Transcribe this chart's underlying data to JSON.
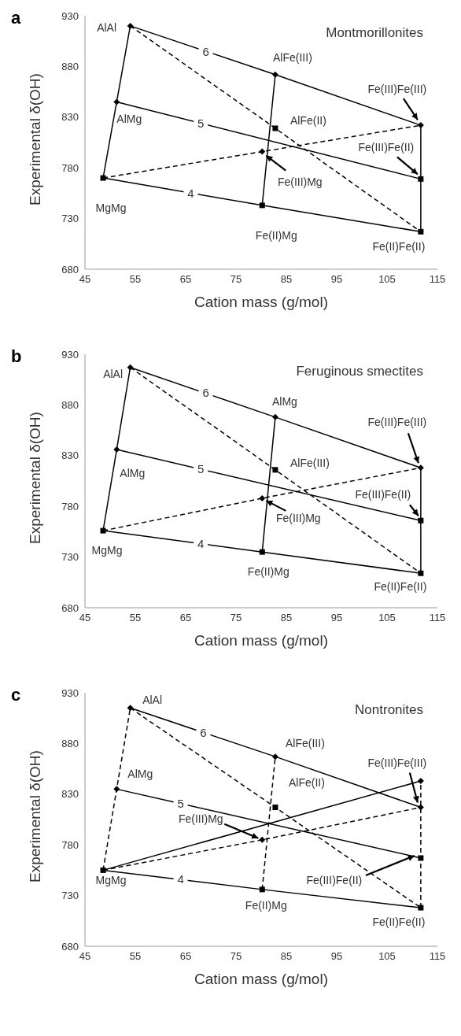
{
  "chart_data": [
    {
      "type": "line",
      "title": "a",
      "xlabel": "Cation mass (g/mol)",
      "ylabel": "Experimental δ(OH)",
      "xlim": [
        45,
        115
      ],
      "xticks": [
        45,
        55,
        65,
        75,
        85,
        95,
        105,
        115
      ],
      "ylim": [
        680,
        930
      ],
      "yticks": [
        680,
        730,
        780,
        830,
        880,
        930
      ],
      "series": [
        {
          "x": [
            54,
            82.8,
            111.7
          ],
          "values": [
            920,
            872,
            822
          ],
          "color": "#000000",
          "line_style": "solid",
          "marker": "none"
        },
        {
          "x": [
            51.3,
            111.7
          ],
          "values": [
            845,
            769
          ],
          "color": "#000000",
          "line_style": "solid",
          "marker": "none"
        },
        {
          "x": [
            48.6,
            80.2,
            111.7
          ],
          "values": [
            770,
            743,
            717
          ],
          "color": "#000000",
          "line_style": "solid",
          "marker": "none"
        },
        {
          "x": [
            48.6,
            51.3,
            54
          ],
          "values": [
            770,
            845,
            920
          ],
          "color": "#000000",
          "line_style": "solid",
          "marker": "none"
        },
        {
          "x": [
            80.2,
            82.8
          ],
          "values": [
            743,
            872
          ],
          "color": "#000000",
          "line_style": "solid",
          "marker": "none"
        },
        {
          "x": [
            111.7,
            111.7,
            111.7
          ],
          "values": [
            717,
            769,
            822
          ],
          "color": "#000000",
          "line_style": "solid",
          "marker": "none"
        },
        {
          "x": [
            54,
            82.8,
            111.7
          ],
          "values": [
            920,
            819,
            717
          ],
          "color": "#000000",
          "line_style": "dashed",
          "marker": "none"
        },
        {
          "x": [
            48.6,
            80.2,
            111.7
          ],
          "values": [
            770,
            796,
            822
          ],
          "color": "#000000",
          "line_style": "dashed",
          "marker": "none"
        },
        {
          "type": "scatter",
          "x": [
            54,
            51.3,
            82.8,
            80.2,
            111.7
          ],
          "values": [
            920,
            845,
            872,
            796,
            822
          ],
          "color": "#000000",
          "marker": "diamond"
        },
        {
          "type": "scatter",
          "x": [
            48.6,
            82.8,
            80.2,
            111.7,
            111.7
          ],
          "values": [
            770,
            819,
            743,
            769,
            717
          ],
          "color": "#000000",
          "marker": "square"
        }
      ],
      "annotations": [
        "Montmorillonites",
        {
          "text": "6",
          "x": 69,
          "y": 895
        },
        {
          "text": "5",
          "x": 68,
          "y": 824
        },
        {
          "text": "4",
          "x": 66,
          "y": 755
        },
        {
          "text": "AlAl",
          "x": 54,
          "y": 920
        },
        {
          "text": "AlMg",
          "x": 51.3,
          "y": 845
        },
        {
          "text": "MgMg",
          "x": 48.6,
          "y": 770
        },
        {
          "text": "AlFe(III)",
          "x": 82.8,
          "y": 872
        },
        {
          "text": "AlFe(II)",
          "x": 82.8,
          "y": 819
        },
        {
          "text": "Fe(III)Mg",
          "x": 80.2,
          "y": 796
        },
        {
          "text": "Fe(II)Mg",
          "x": 80.2,
          "y": 743
        },
        {
          "text": "Fe(III)Fe(III)",
          "x": 111.7,
          "y": 822
        },
        {
          "text": "Fe(III)Fe(II)",
          "x": 111.7,
          "y": 769
        },
        {
          "text": "Fe(II)Fe(II)",
          "x": 111.7,
          "y": 717
        }
      ]
    },
    {
      "type": "line",
      "title": "b",
      "xlabel": "Cation mass (g/mol)",
      "ylabel": "Experimental δ(OH)",
      "xlim": [
        45,
        115
      ],
      "xticks": [
        45,
        55,
        65,
        75,
        85,
        95,
        105,
        115
      ],
      "ylim": [
        680,
        930
      ],
      "yticks": [
        680,
        730,
        780,
        830,
        880,
        930
      ],
      "series": [
        {
          "x": [
            54,
            82.8,
            111.7
          ],
          "values": [
            917,
            868,
            818
          ],
          "color": "#000000",
          "line_style": "solid",
          "marker": "none"
        },
        {
          "x": [
            51.3,
            111.7
          ],
          "values": [
            836,
            766
          ],
          "color": "#000000",
          "line_style": "solid",
          "marker": "none"
        },
        {
          "x": [
            48.6,
            80.2,
            111.7
          ],
          "values": [
            756,
            735,
            714
          ],
          "color": "#000000",
          "line_style": "solid",
          "marker": "none"
        },
        {
          "x": [
            48.6,
            51.3,
            54
          ],
          "values": [
            756,
            836,
            917
          ],
          "color": "#000000",
          "line_style": "solid",
          "marker": "none"
        },
        {
          "x": [
            80.2,
            82.8
          ],
          "values": [
            735,
            868
          ],
          "color": "#000000",
          "line_style": "solid",
          "marker": "none"
        },
        {
          "x": [
            111.7,
            111.7,
            111.7
          ],
          "values": [
            714,
            766,
            818
          ],
          "color": "#000000",
          "line_style": "solid",
          "marker": "none"
        },
        {
          "x": [
            54,
            82.8,
            111.7
          ],
          "values": [
            917,
            816,
            714
          ],
          "color": "#000000",
          "line_style": "dashed",
          "marker": "none"
        },
        {
          "x": [
            48.6,
            80.2,
            111.7
          ],
          "values": [
            756,
            788,
            818
          ],
          "color": "#000000",
          "line_style": "dashed",
          "marker": "none"
        },
        {
          "type": "scatter",
          "x": [
            54,
            51.3,
            82.8,
            80.2,
            111.7
          ],
          "values": [
            917,
            836,
            868,
            788,
            818
          ],
          "color": "#000000",
          "marker": "diamond"
        },
        {
          "type": "scatter",
          "x": [
            48.6,
            82.8,
            80.2,
            111.7,
            111.7
          ],
          "values": [
            756,
            816,
            735,
            766,
            714
          ],
          "color": "#000000",
          "marker": "square"
        }
      ],
      "annotations": [
        "Feruginous smectites",
        {
          "text": "6",
          "x": 69,
          "y": 892
        },
        {
          "text": "5",
          "x": 68,
          "y": 817
        },
        {
          "text": "4",
          "x": 68,
          "y": 743
        },
        {
          "text": "AlAl",
          "x": 54,
          "y": 917
        },
        {
          "text": "AlMg",
          "x": 51.3,
          "y": 836
        },
        {
          "text": "MgMg",
          "x": 48.6,
          "y": 756
        },
        {
          "text": "AlMg",
          "x": 82.8,
          "y": 868
        },
        {
          "text": "AlFe(III)",
          "x": 82.8,
          "y": 816
        },
        {
          "text": "Fe(III)Mg",
          "x": 80.2,
          "y": 788
        },
        {
          "text": "Fe(II)Mg",
          "x": 80.2,
          "y": 735
        },
        {
          "text": "Fe(III)Fe(III)",
          "x": 111.7,
          "y": 818
        },
        {
          "text": "Fe(III)Fe(II)",
          "x": 111.7,
          "y": 766
        },
        {
          "text": "Fe(II)Fe(II)",
          "x": 111.7,
          "y": 714
        }
      ]
    },
    {
      "type": "line",
      "title": "c",
      "xlabel": "Cation mass (g/mol)",
      "ylabel": "Experimental δ(OH)",
      "xlim": [
        45,
        115
      ],
      "xticks": [
        45,
        55,
        65,
        75,
        85,
        95,
        105,
        115
      ],
      "ylim": [
        680,
        930
      ],
      "yticks": [
        680,
        730,
        780,
        830,
        880,
        930
      ],
      "series": [
        {
          "x": [
            54,
            82.8,
            111.7
          ],
          "values": [
            915,
            867,
            817
          ],
          "color": "#000000",
          "line_style": "solid",
          "marker": "none"
        },
        {
          "x": [
            51.3,
            111.7
          ],
          "values": [
            835,
            767
          ],
          "color": "#000000",
          "line_style": "solid",
          "marker": "none"
        },
        {
          "x": [
            48.6,
            80.2,
            111.7
          ],
          "values": [
            755,
            736,
            718
          ],
          "color": "#000000",
          "line_style": "solid",
          "marker": "none"
        },
        {
          "x": [
            48.6,
            111.7
          ],
          "values": [
            755,
            843
          ],
          "color": "#000000",
          "line_style": "solid",
          "marker": "none"
        },
        {
          "x": [
            48.6,
            51.3,
            54
          ],
          "values": [
            755,
            835,
            915
          ],
          "color": "#000000",
          "line_style": "dashed",
          "marker": "none"
        },
        {
          "x": [
            80.2,
            82.8
          ],
          "values": [
            736,
            867
          ],
          "color": "#000000",
          "line_style": "dashed",
          "marker": "none"
        },
        {
          "x": [
            111.7,
            111.7,
            111.7,
            111.7
          ],
          "values": [
            718,
            767,
            817,
            843
          ],
          "color": "#000000",
          "line_style": "dashed",
          "marker": "none"
        },
        {
          "x": [
            54,
            82.8,
            111.7
          ],
          "values": [
            915,
            817,
            718
          ],
          "color": "#000000",
          "line_style": "dashed",
          "marker": "none"
        },
        {
          "x": [
            48.6,
            80.2,
            111.7
          ],
          "values": [
            755,
            785,
            817
          ],
          "color": "#000000",
          "line_style": "dashed",
          "marker": "none"
        },
        {
          "type": "scatter",
          "x": [
            54,
            51.3,
            82.8,
            80.2,
            111.7,
            111.7
          ],
          "values": [
            915,
            835,
            867,
            785,
            843,
            817
          ],
          "color": "#000000",
          "marker": "diamond"
        },
        {
          "type": "scatter",
          "x": [
            48.6,
            82.8,
            80.2,
            111.7,
            111.7
          ],
          "values": [
            755,
            817,
            736,
            767,
            718
          ],
          "color": "#000000",
          "marker": "square"
        }
      ],
      "annotations": [
        "Nontronites",
        {
          "text": "6",
          "x": 68.5,
          "y": 891
        },
        {
          "text": "5",
          "x": 64,
          "y": 821
        },
        {
          "text": "4",
          "x": 64,
          "y": 746
        },
        {
          "text": "AlAl",
          "x": 54,
          "y": 915
        },
        {
          "text": "AlMg",
          "x": 51.3,
          "y": 835
        },
        {
          "text": "MgMg",
          "x": 48.6,
          "y": 755
        },
        {
          "text": "AlFe(III)",
          "x": 82.8,
          "y": 867
        },
        {
          "text": "AlFe(II)",
          "x": 82.8,
          "y": 817
        },
        {
          "text": "Fe(III)Mg",
          "x": 80.2,
          "y": 785
        },
        {
          "text": "Fe(II)Mg",
          "x": 80.2,
          "y": 736
        },
        {
          "text": "Fe(III)Fe(III)",
          "x": 111.7,
          "y": 817
        },
        {
          "text": "Fe(III)Fe(II)",
          "x": 111.7,
          "y": 767
        },
        {
          "text": "Fe(II)Fe(II)",
          "x": 111.7,
          "y": 718
        }
      ]
    }
  ]
}
